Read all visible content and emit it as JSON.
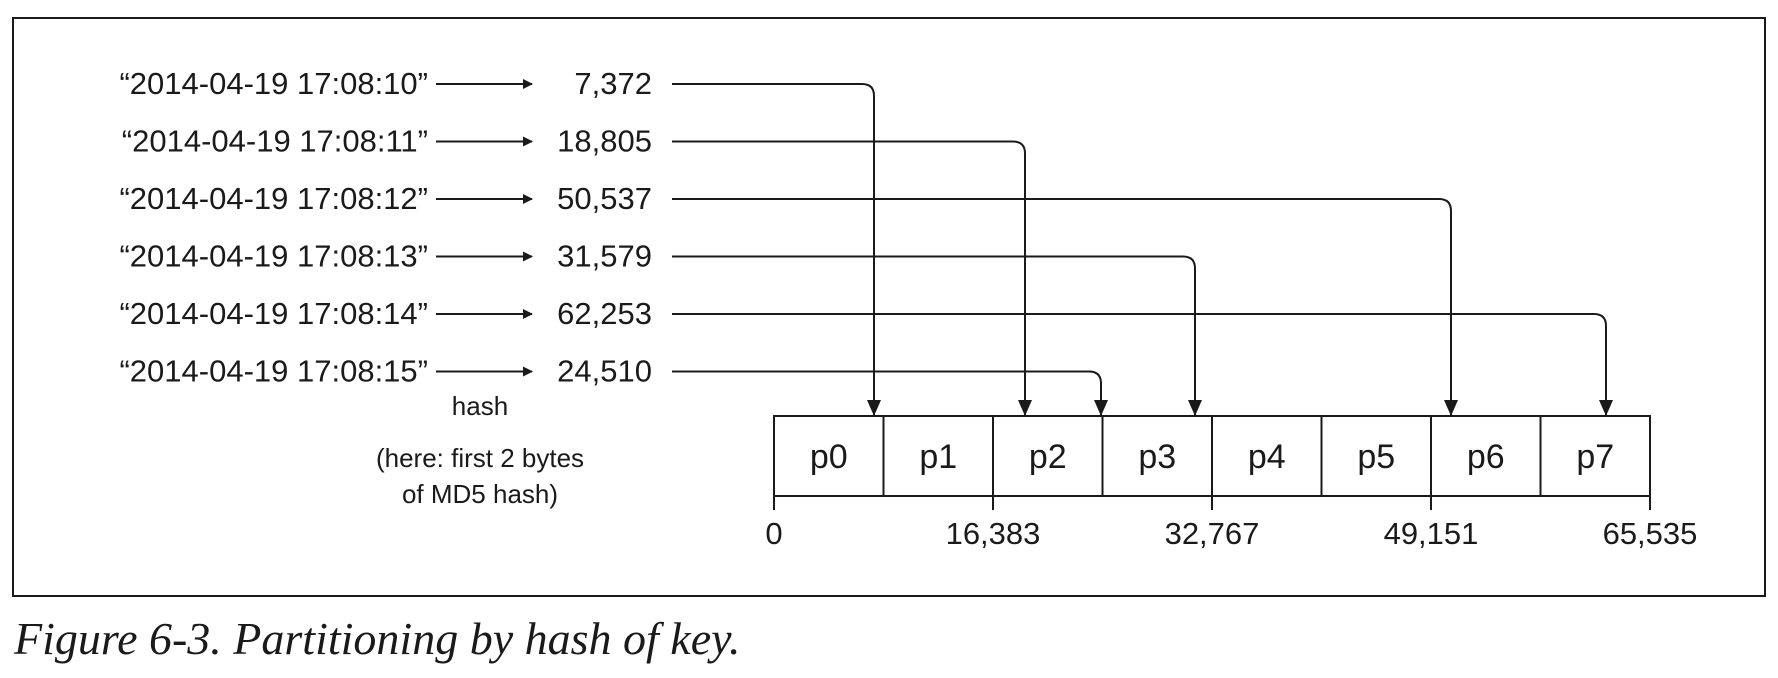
{
  "keys": [
    {
      "key": "“2014-04-19 17:08:10”",
      "hash": "7,372",
      "partition": 0,
      "value": 7372
    },
    {
      "key": "“2014-04-19 17:08:11”",
      "hash": "18,805",
      "partition": 2,
      "value": 18805
    },
    {
      "key": "“2014-04-19 17:08:12”",
      "hash": "50,537",
      "partition": 6,
      "value": 50537
    },
    {
      "key": "“2014-04-19 17:08:13”",
      "hash": "31,579",
      "partition": 3,
      "value": 31579
    },
    {
      "key": "“2014-04-19 17:08:14”",
      "hash": "62,253",
      "partition": 7,
      "value": 62253
    },
    {
      "key": "“2014-04-19 17:08:15”",
      "hash": "24,510",
      "partition": 2,
      "value": 24510
    }
  ],
  "hash_label": "hash",
  "hash_note_line1": "(here: first 2 bytes",
  "hash_note_line2": "of MD5 hash)",
  "partitions": [
    "p0",
    "p1",
    "p2",
    "p3",
    "p4",
    "p5",
    "p6",
    "p7"
  ],
  "scale_ticks": [
    "0",
    "16,383",
    "32,767",
    "49,151",
    "65,535"
  ],
  "caption": "Figure 6-3. Partitioning by hash of key."
}
